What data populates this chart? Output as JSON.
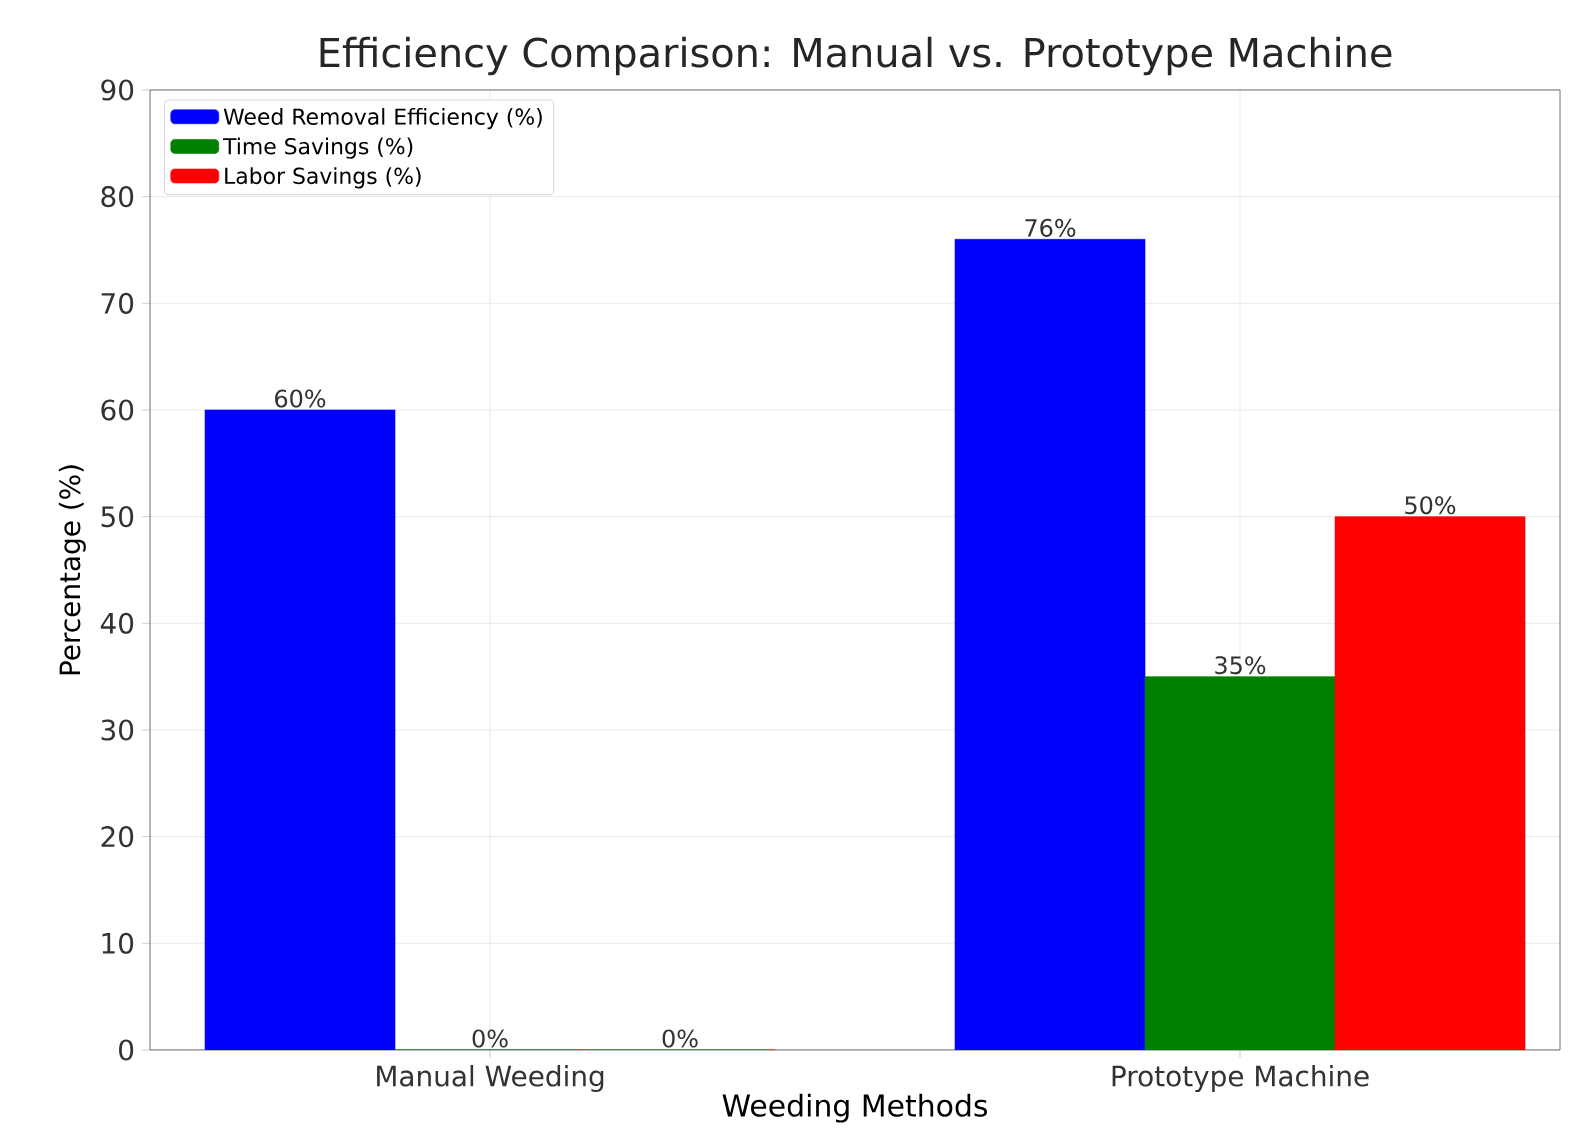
{
  "chart_data": {
    "type": "bar",
    "title": "Efficiency Comparison: Manual vs. Prototype Machine",
    "xlabel": "Weeding Methods",
    "ylabel": "Percentage (%)",
    "categories": [
      "Manual Weeding",
      "Prototype Machine"
    ],
    "series": [
      {
        "name": "Weed Removal Efficiency (%)",
        "color": "#0000ff",
        "values": [
          60,
          76
        ],
        "value_labels": [
          "60%",
          "76%"
        ]
      },
      {
        "name": "Time Savings (%)",
        "color": "#008000",
        "values": [
          0,
          35
        ],
        "value_labels": [
          "0%",
          "35%"
        ]
      },
      {
        "name": "Labor Savings (%)",
        "color": "#ff0000",
        "values": [
          0,
          50
        ],
        "value_labels": [
          "0%",
          "50%"
        ]
      }
    ],
    "ylim": [
      0,
      90
    ],
    "yticks": [
      0,
      10,
      20,
      30,
      40,
      50,
      60,
      70,
      80,
      90
    ],
    "grid": true,
    "legend": "top left"
  }
}
